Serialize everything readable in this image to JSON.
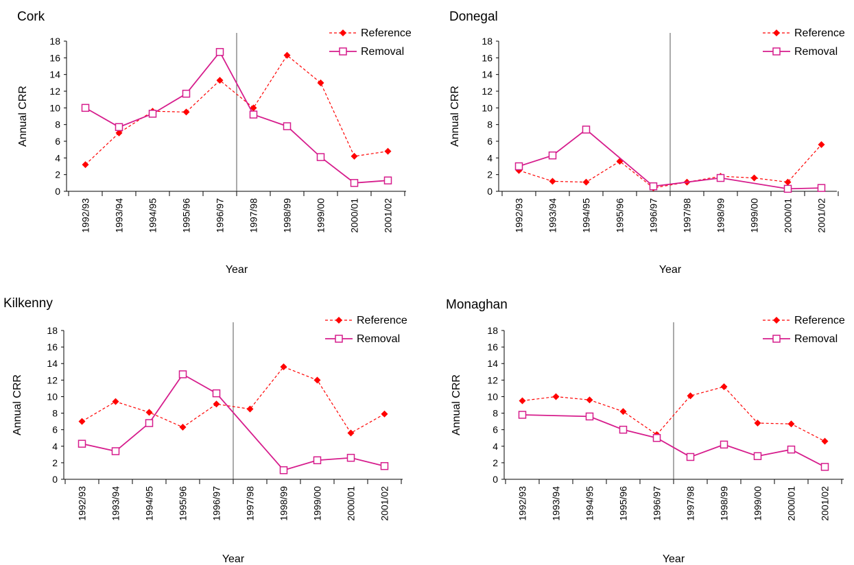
{
  "chart_data": [
    {
      "type": "line",
      "title": "Cork",
      "xlabel": "Year",
      "ylabel": "Annual CRR",
      "ylim": [
        0,
        18
      ],
      "yticks": [
        0,
        2,
        4,
        6,
        8,
        10,
        12,
        14,
        16,
        18
      ],
      "categories": [
        "1992/93",
        "1993/94",
        "1994/95",
        "1995/96",
        "1996/97",
        "1997/98",
        "1998/99",
        "1999/00",
        "2000/01",
        "2001/02"
      ],
      "divider_after": "1996/97",
      "legend_position": "top-right",
      "grid": false,
      "series": [
        {
          "name": "Reference",
          "style": "dashed-diamond",
          "color": "#ff0000",
          "values": [
            3.2,
            7.0,
            9.6,
            9.5,
            13.3,
            10.0,
            16.3,
            13.0,
            4.2,
            4.8
          ]
        },
        {
          "name": "Removal",
          "style": "solid-square",
          "color": "#d61c8c",
          "values": [
            10.0,
            7.7,
            9.3,
            11.7,
            16.7,
            9.2,
            7.8,
            4.1,
            1.0,
            1.3
          ]
        }
      ]
    },
    {
      "type": "line",
      "title": "Donegal",
      "xlabel": "Year",
      "ylabel": "Annual CRR",
      "ylim": [
        0,
        18
      ],
      "yticks": [
        0,
        2,
        4,
        6,
        8,
        10,
        12,
        14,
        16,
        18
      ],
      "categories": [
        "1992/93",
        "1993/94",
        "1994/95",
        "1995/96",
        "1996/97",
        "1997/98",
        "1998/99",
        "1999/00",
        "2000/01",
        "2001/02"
      ],
      "divider_after": "1996/97",
      "legend_position": "top-right",
      "grid": false,
      "series": [
        {
          "name": "Reference",
          "style": "dashed-diamond",
          "color": "#ff0000",
          "values": [
            2.5,
            1.2,
            1.1,
            3.6,
            0.4,
            1.1,
            1.8,
            1.6,
            1.1,
            5.6
          ]
        },
        {
          "name": "Removal",
          "style": "solid-square",
          "color": "#d61c8c",
          "values": [
            3.0,
            4.3,
            7.4,
            null,
            0.6,
            null,
            1.6,
            null,
            0.3,
            0.4
          ]
        }
      ]
    },
    {
      "type": "line",
      "title": "Kilkenny",
      "xlabel": "Year",
      "ylabel": "Annual CRR",
      "ylim": [
        0,
        18
      ],
      "yticks": [
        0,
        2,
        4,
        6,
        8,
        10,
        12,
        14,
        16,
        18
      ],
      "categories": [
        "1992/93",
        "1993/94",
        "1994/95",
        "1995/96",
        "1996/97",
        "1997/98",
        "1998/99",
        "1999/00",
        "2000/01",
        "2001/02"
      ],
      "divider_after": "1996/97",
      "legend_position": "top-right",
      "grid": false,
      "series": [
        {
          "name": "Reference",
          "style": "dashed-diamond",
          "color": "#ff0000",
          "values": [
            7.0,
            9.4,
            8.1,
            6.3,
            9.1,
            8.5,
            13.6,
            12.0,
            5.6,
            7.9
          ]
        },
        {
          "name": "Removal",
          "style": "solid-square",
          "color": "#d61c8c",
          "values": [
            4.3,
            3.4,
            6.8,
            12.7,
            10.4,
            null,
            1.1,
            2.3,
            2.6,
            1.6
          ]
        }
      ]
    },
    {
      "type": "line",
      "title": "Monaghan",
      "xlabel": "Year",
      "ylabel": "Annual CRR",
      "ylim": [
        0,
        18
      ],
      "yticks": [
        0,
        2,
        4,
        6,
        8,
        10,
        12,
        14,
        16,
        18
      ],
      "categories": [
        "1992/93",
        "1993/94",
        "1994/95",
        "1995/96",
        "1996/97",
        "1997/98",
        "1998/99",
        "1999/00",
        "2000/01",
        "2001/02"
      ],
      "divider_after": "1996/97",
      "legend_position": "top-right",
      "grid": false,
      "series": [
        {
          "name": "Reference",
          "style": "dashed-diamond",
          "color": "#ff0000",
          "values": [
            9.5,
            10.0,
            9.6,
            8.2,
            5.4,
            10.1,
            11.2,
            6.8,
            6.7,
            4.6
          ]
        },
        {
          "name": "Removal",
          "style": "solid-square",
          "color": "#d61c8c",
          "values": [
            7.8,
            null,
            7.6,
            6.0,
            5.0,
            2.7,
            4.2,
            2.8,
            3.6,
            1.5
          ]
        }
      ]
    }
  ]
}
